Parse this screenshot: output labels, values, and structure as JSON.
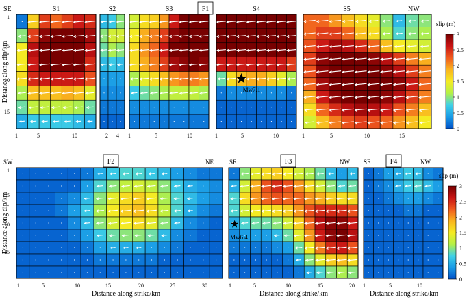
{
  "chart_data": [
    {
      "type": "heatmap",
      "title": "F1",
      "ylabel": "Distance along dip/km",
      "y_ticks": [
        "1",
        "5",
        "10",
        "15"
      ],
      "colorbar": {
        "label": "slip (m)",
        "range": [
          0,
          3
        ],
        "ticks": [
          "0",
          "0.5",
          "1",
          "1.5",
          "2",
          "2.5",
          "3"
        ]
      },
      "epicenter": {
        "label": "Mw7.1",
        "segment": "S4",
        "strike_km": 5,
        "dip_km": 10
      },
      "segments": [
        {
          "name": "S1",
          "end_labels": [
            "SE"
          ],
          "x_ticks": [
            "1",
            "5",
            "10"
          ],
          "slip": [
            [
              0.2,
              1.7,
              2.4,
              2.2,
              2.4,
              2.6,
              2.5
            ],
            [
              1.0,
              2.4,
              2.9,
              3.0,
              3.0,
              3.0,
              2.8
            ],
            [
              1.5,
              2.7,
              3.0,
              3.0,
              3.0,
              3.0,
              2.7
            ],
            [
              1.5,
              2.6,
              3.0,
              3.0,
              3.0,
              3.0,
              2.5
            ],
            [
              1.6,
              2.5,
              2.6,
              2.6,
              2.6,
              2.6,
              2.3
            ],
            [
              1.1,
              1.8,
              1.8,
              1.8,
              1.9,
              1.8,
              1.4
            ],
            [
              0.9,
              1.2,
              1.2,
              1.2,
              1.2,
              1.1,
              0.9
            ],
            [
              0.5,
              0.7,
              0.7,
              0.7,
              0.7,
              0.6,
              0.5
            ]
          ]
        },
        {
          "name": "S2",
          "end_labels": [],
          "x_ticks": [
            "2",
            "4"
          ],
          "slip": [
            [
              0.6,
              0.7,
              1.0
            ],
            [
              1.0,
              1.3,
              1.3
            ],
            [
              0.9,
              1.1,
              1.0
            ],
            [
              0.6,
              0.7,
              0.6
            ],
            [
              0.4,
              0.4,
              0.4
            ],
            [
              0.3,
              0.3,
              0.3
            ],
            [
              0.2,
              0.2,
              0.2
            ],
            [
              0.1,
              0.1,
              0.1
            ]
          ]
        },
        {
          "name": "S3",
          "end_labels": [],
          "x_ticks": [
            "1",
            "5",
            "10"
          ],
          "slip": [
            [
              1.3,
              1.6,
              1.7,
              2.0,
              2.6,
              3.0,
              3.0,
              3.0
            ],
            [
              1.5,
              1.9,
              2.1,
              2.4,
              2.9,
              3.0,
              3.0,
              3.0
            ],
            [
              1.6,
              2.0,
              2.2,
              2.6,
              3.0,
              3.0,
              3.0,
              3.0
            ],
            [
              1.6,
              1.9,
              2.1,
              2.4,
              2.8,
              2.9,
              3.0,
              2.9
            ],
            [
              1.1,
              1.4,
              1.6,
              1.8,
              2.0,
              2.1,
              2.1,
              2.0
            ],
            [
              0.7,
              0.9,
              1.0,
              1.1,
              1.2,
              1.2,
              1.2,
              1.1
            ],
            [
              0.3,
              0.3,
              0.3,
              0.3,
              0.3,
              0.3,
              0.3,
              0.3
            ],
            [
              0.2,
              0.2,
              0.2,
              0.2,
              0.2,
              0.2,
              0.2,
              0.2
            ]
          ]
        },
        {
          "name": "S4",
          "end_labels": [],
          "x_ticks": [
            "1",
            "5",
            "10"
          ],
          "slip": [
            [
              3.0,
              3.0,
              3.0,
              3.0,
              3.0,
              3.0,
              3.0,
              3.0
            ],
            [
              3.0,
              3.0,
              3.0,
              3.0,
              3.0,
              3.0,
              3.0,
              3.0
            ],
            [
              3.0,
              3.0,
              3.0,
              3.0,
              3.0,
              3.0,
              3.0,
              3.0
            ],
            [
              2.6,
              2.6,
              2.6,
              2.6,
              2.6,
              2.6,
              2.6,
              2.4
            ],
            [
              0.9,
              1.6,
              1.8,
              1.9,
              1.9,
              1.7,
              1.4,
              1.1
            ],
            [
              0.2,
              0.3,
              0.3,
              0.3,
              0.3,
              0.3,
              0.3,
              0.2
            ],
            [
              0.1,
              0.1,
              0.1,
              0.1,
              0.1,
              0.1,
              0.1,
              0.1
            ],
            [
              0.1,
              0.1,
              0.1,
              0.1,
              0.1,
              0.1,
              0.1,
              0.1
            ]
          ]
        },
        {
          "name": "S5",
          "end_labels": [
            "NW"
          ],
          "x_ticks": [
            "1",
            "5",
            "10",
            "15"
          ],
          "slip": [
            [
              2.2,
              2.2,
              2.0,
              1.8,
              1.6,
              1.4,
              1.0,
              0.6,
              0.9,
              1.0
            ],
            [
              2.2,
              2.4,
              2.4,
              2.2,
              1.8,
              1.6,
              1.1,
              0.8,
              1.0,
              1.1
            ],
            [
              2.3,
              2.6,
              2.8,
              2.7,
              2.5,
              2.2,
              1.8,
              1.5,
              1.4,
              1.3
            ],
            [
              2.4,
              2.9,
              3.0,
              3.0,
              3.0,
              2.9,
              2.7,
              2.4,
              2.1,
              1.9
            ],
            [
              2.3,
              2.9,
              3.0,
              3.0,
              3.0,
              3.0,
              2.9,
              2.7,
              2.4,
              2.1
            ],
            [
              2.2,
              2.8,
              3.0,
              3.0,
              3.0,
              3.0,
              3.0,
              2.9,
              2.6,
              2.2
            ],
            [
              1.9,
              2.6,
              2.9,
              3.0,
              3.0,
              3.0,
              2.9,
              2.7,
              2.4,
              2.1
            ],
            [
              1.6,
              2.2,
              2.5,
              2.7,
              2.8,
              2.7,
              2.6,
              2.3,
              2.1,
              1.8
            ],
            [
              1.3,
              1.8,
              2.1,
              2.3,
              2.4,
              2.3,
              2.2,
              2.0,
              1.8,
              1.5
            ]
          ]
        }
      ]
    },
    {
      "type": "heatmap",
      "title": "F2",
      "end_labels": [
        "SW",
        "NE"
      ],
      "xlabel": "Distance along strike/km",
      "ylabel": "Distance along dip/km",
      "x_ticks": [
        "1",
        "5",
        "10",
        "15",
        "20",
        "25",
        "30"
      ],
      "y_ticks": [
        "1",
        "5",
        "10",
        "15"
      ],
      "slip": [
        [
          0.1,
          0.1,
          0.1,
          0.1,
          0.1,
          0.2,
          0.5,
          0.7,
          0.8,
          0.8,
          0.7,
          0.6,
          0.4,
          0.3,
          0.2,
          0.2
        ],
        [
          0.1,
          0.1,
          0.1,
          0.1,
          0.1,
          0.4,
          0.8,
          1.0,
          1.2,
          1.3,
          1.2,
          1.0,
          0.7,
          0.5,
          0.4,
          0.3
        ],
        [
          0.1,
          0.1,
          0.1,
          0.2,
          0.3,
          0.6,
          1.0,
          1.4,
          1.6,
          1.7,
          1.5,
          1.1,
          0.8,
          0.6,
          0.4,
          0.3
        ],
        [
          0.1,
          0.1,
          0.1,
          0.2,
          0.4,
          0.7,
          1.1,
          1.5,
          1.7,
          1.8,
          1.6,
          1.2,
          0.8,
          0.5,
          0.3,
          0.2
        ],
        [
          0.1,
          0.1,
          0.1,
          0.1,
          0.3,
          0.6,
          1.0,
          1.3,
          1.5,
          1.6,
          1.4,
          1.0,
          0.6,
          0.3,
          0.2,
          0.1
        ],
        [
          0.1,
          0.1,
          0.1,
          0.1,
          0.2,
          0.4,
          0.7,
          0.9,
          1.0,
          1.0,
          0.9,
          0.6,
          0.3,
          0.2,
          0.1,
          0.1
        ],
        [
          0.1,
          0.1,
          0.1,
          0.1,
          0.1,
          0.2,
          0.4,
          0.5,
          0.5,
          0.5,
          0.4,
          0.3,
          0.2,
          0.1,
          0.1,
          0.1
        ],
        [
          0.1,
          0.1,
          0.1,
          0.1,
          0.1,
          0.1,
          0.2,
          0.2,
          0.2,
          0.2,
          0.2,
          0.1,
          0.1,
          0.1,
          0.1,
          0.1
        ],
        [
          0.1,
          0.1,
          0.1,
          0.1,
          0.1,
          0.1,
          0.1,
          0.1,
          0.1,
          0.1,
          0.1,
          0.1,
          0.1,
          0.1,
          0.1,
          0.1
        ]
      ]
    },
    {
      "type": "heatmap",
      "title": "F3",
      "end_labels": [
        "SE",
        "NW"
      ],
      "xlabel": "Distance along strike/km",
      "x_ticks": [
        "1",
        "5",
        "10",
        "15",
        "20"
      ],
      "epicenter": {
        "label": "Mw6.4",
        "strike_km": 2,
        "dip_km": 10
      },
      "slip": [
        [
          0.2,
          1.0,
          1.4,
          1.6,
          1.7,
          1.5,
          1.3,
          1.1,
          0.9,
          0.6,
          0.4,
          0.6
        ],
        [
          0.5,
          1.3,
          1.9,
          2.3,
          2.5,
          2.3,
          2.0,
          1.6,
          1.3,
          1.0,
          0.8,
          0.9
        ],
        [
          0.8,
          1.6,
          2.0,
          2.2,
          2.3,
          2.2,
          2.2,
          2.0,
          1.9,
          1.7,
          1.6,
          1.6
        ],
        [
          0.8,
          1.3,
          1.5,
          1.5,
          1.6,
          1.7,
          2.0,
          2.3,
          2.5,
          2.5,
          2.5,
          2.3
        ],
        [
          0.5,
          0.8,
          0.9,
          0.9,
          1.0,
          1.3,
          1.7,
          2.2,
          2.7,
          2.9,
          2.9,
          2.6
        ],
        [
          0.3,
          0.4,
          0.4,
          0.4,
          0.6,
          0.9,
          1.4,
          2.0,
          2.6,
          2.9,
          3.0,
          2.7
        ],
        [
          0.2,
          0.2,
          0.2,
          0.2,
          0.3,
          0.4,
          0.9,
          1.5,
          2.1,
          2.5,
          2.6,
          2.3
        ],
        [
          0.1,
          0.1,
          0.1,
          0.1,
          0.1,
          0.2,
          0.5,
          1.0,
          1.4,
          1.7,
          1.8,
          1.6
        ],
        [
          0.1,
          0.1,
          0.1,
          0.1,
          0.1,
          0.1,
          0.2,
          0.5,
          0.8,
          1.0,
          1.1,
          1.0
        ]
      ]
    },
    {
      "type": "heatmap",
      "title": "F4",
      "end_labels": [
        "SE",
        "NW"
      ],
      "xlabel": "Distance along strike/km",
      "x_ticks": [
        "1",
        "5",
        "10"
      ],
      "colorbar": {
        "label": "slip (m)",
        "range": [
          0,
          3
        ],
        "ticks": [
          "0",
          "0.5",
          "1",
          "1.5",
          "2",
          "2.5",
          "3"
        ]
      },
      "slip": [
        [
          0.1,
          0.2,
          0.4,
          0.5,
          0.7,
          0.6,
          0.3,
          0.2
        ],
        [
          0.1,
          0.2,
          0.3,
          0.5,
          0.7,
          0.8,
          0.6,
          0.4
        ],
        [
          0.1,
          0.1,
          0.2,
          0.3,
          0.4,
          0.4,
          0.3,
          0.2
        ],
        [
          0.1,
          0.1,
          0.1,
          0.1,
          0.2,
          0.2,
          0.1,
          0.1
        ],
        [
          0.1,
          0.1,
          0.1,
          0.1,
          0.1,
          0.1,
          0.1,
          0.1
        ],
        [
          0.1,
          0.1,
          0.1,
          0.1,
          0.1,
          0.1,
          0.1,
          0.1
        ],
        [
          0.1,
          0.1,
          0.1,
          0.1,
          0.1,
          0.1,
          0.1,
          0.1
        ],
        [
          0.1,
          0.1,
          0.1,
          0.1,
          0.1,
          0.1,
          0.1,
          0.1
        ],
        [
          0.1,
          0.1,
          0.1,
          0.1,
          0.1,
          0.1,
          0.1,
          0.1
        ]
      ]
    }
  ]
}
